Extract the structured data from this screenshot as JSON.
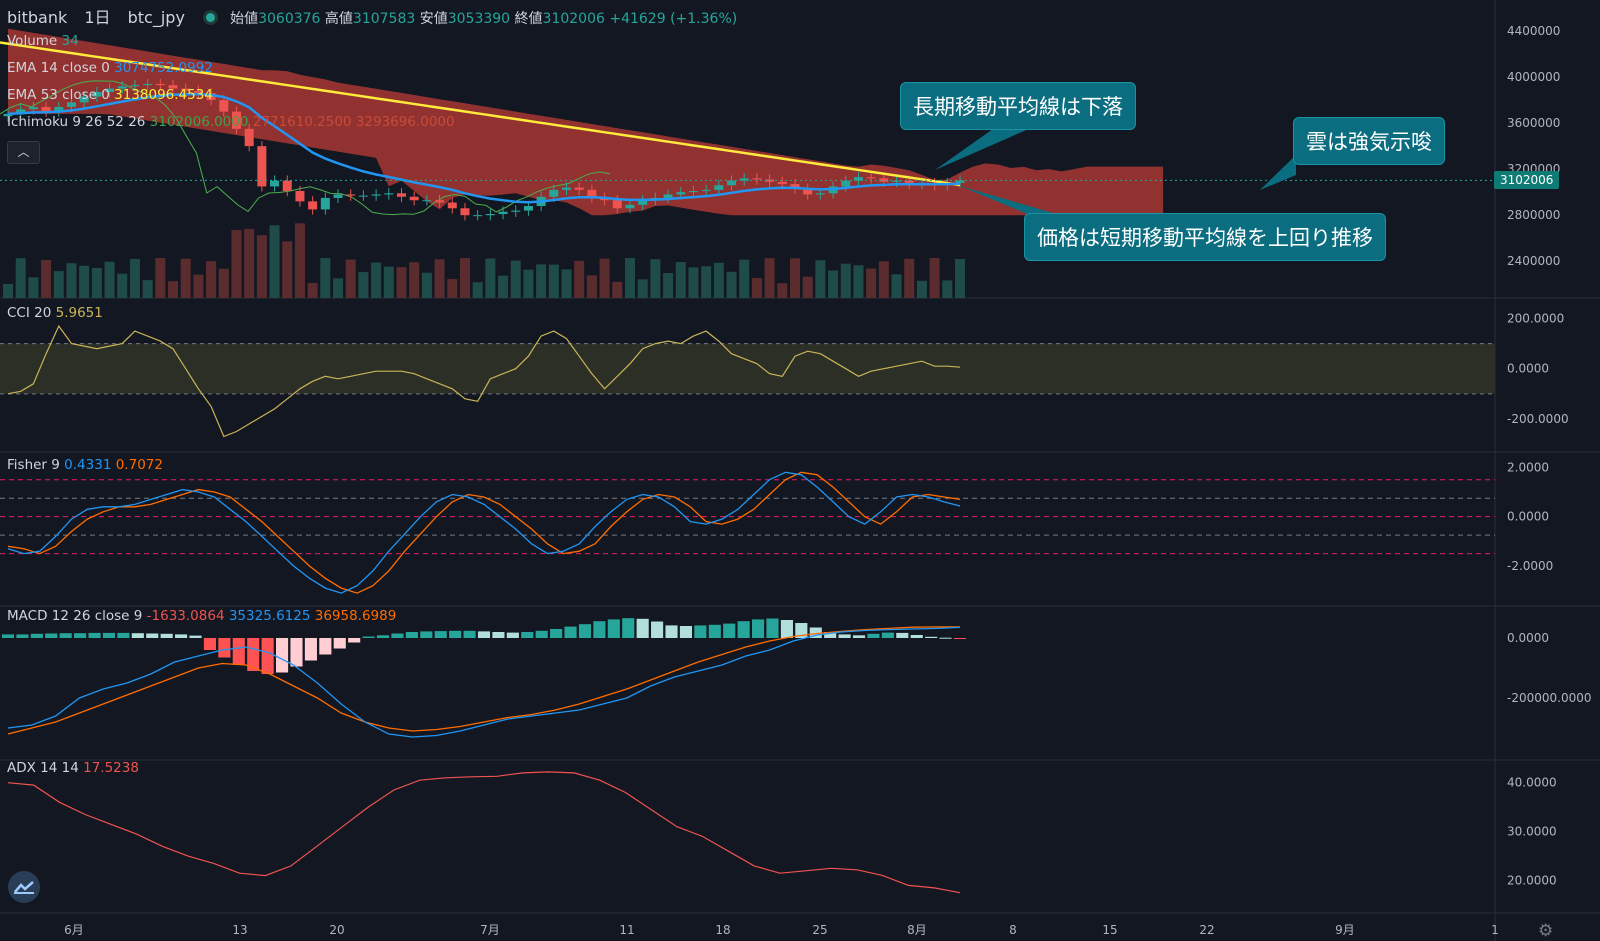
{
  "header": {
    "symbol": "bitbank",
    "interval": "1日",
    "pair": "btc_jpy",
    "open_label": "始値",
    "open": "3060376",
    "high_label": "高値",
    "high": "3107583",
    "low_label": "安値",
    "low": "3053390",
    "close_label": "終値",
    "close": "3102006",
    "change": "+41629 (+1.36%)"
  },
  "indicators": {
    "volume": {
      "label": "Volume",
      "value": "34"
    },
    "ema14": {
      "label": "EMA 14 close 0",
      "value": "3074752.0992"
    },
    "ema53": {
      "label": "EMA 53 close 0",
      "value": "3138096.4534"
    },
    "ichimoku": {
      "label": "Ichimoku 9 26 52 26",
      "v1": "3102006.0000",
      "v2": "2771610.2500",
      "v3": "3293696.0000"
    },
    "cci": {
      "label": "CCI 20",
      "value": "5.9651"
    },
    "fisher": {
      "label": "Fisher 9",
      "v1": "0.4331",
      "v2": "0.7072"
    },
    "macd": {
      "label": "MACD 12 26 close 9",
      "v1": "-1633.0864",
      "v2": "35325.6125",
      "v3": "36958.6989"
    },
    "adx": {
      "label": "ADX 14 14",
      "value": "17.5238"
    }
  },
  "annotations": {
    "a1": "長期移動平均線は下落",
    "a2": "雲は強気示唆",
    "a3": "価格は短期移動平均線を上回り推移"
  },
  "current_price_tag": "3102006",
  "colors": {
    "bg": "#131722",
    "up": "#26a69a",
    "down": "#ef5350",
    "ema14": "#2196f3",
    "ema53": "#ffeb3b",
    "cloud": "#b13a34",
    "cci": "#c9b458",
    "fisher1": "#2196f3",
    "fisher2": "#ff6d00",
    "adx": "#ef5350",
    "callout": "#0b6d80"
  },
  "chart_data": [
    {
      "type": "candlestick",
      "title": "bitbank 1日 btc_jpy",
      "x_ticks": [
        "6月",
        "13",
        "20",
        "7月",
        "11",
        "18",
        "25",
        "8月",
        "8",
        "15",
        "22",
        "9月",
        "1"
      ],
      "y_ticks": [
        "4400000",
        "4000000",
        "3600000",
        "3200000",
        "2800000",
        "2400000"
      ],
      "ylim": [
        2150000,
        4600000
      ],
      "closes": [
        3680000,
        3720000,
        3740000,
        3700000,
        3740000,
        3780000,
        3830000,
        3870000,
        3900000,
        3920000,
        3930000,
        3940000,
        3930000,
        3900000,
        3880000,
        3860000,
        3800000,
        3700000,
        3550000,
        3400000,
        3050000,
        3100000,
        3010000,
        2920000,
        2850000,
        2950000,
        2980000,
        2970000,
        2970000,
        2980000,
        2990000,
        2960000,
        2930000,
        2930000,
        2910000,
        2860000,
        2800000,
        2800000,
        2810000,
        2830000,
        2840000,
        2880000,
        2960000,
        3020000,
        3040000,
        3020000,
        2950000,
        2930000,
        2860000,
        2890000,
        2930000,
        2950000,
        2980000,
        3000000,
        3010000,
        3020000,
        3060000,
        3100000,
        3120000,
        3110000,
        3090000,
        3070000,
        3030000,
        2980000,
        2990000,
        3050000,
        3100000,
        3130000,
        3120000,
        3090000,
        3100000,
        3070000,
        3080000,
        3060000,
        3080000,
        3102006
      ],
      "volume_label": "Volume 34"
    },
    {
      "type": "line",
      "name": "CCI 20",
      "y_ticks": [
        "200.0000",
        "0.0000",
        "-200.0000"
      ],
      "ylim": [
        -300,
        250
      ],
      "band": [
        -100,
        100
      ],
      "values": [
        -100,
        -90,
        -60,
        60,
        170,
        100,
        90,
        80,
        90,
        100,
        150,
        130,
        110,
        80,
        0,
        -80,
        -150,
        -270,
        -250,
        -220,
        -190,
        -160,
        -120,
        -80,
        -50,
        -30,
        -40,
        -30,
        -20,
        -10,
        -10,
        -10,
        -20,
        -40,
        -60,
        -80,
        -120,
        -130,
        -40,
        -20,
        0,
        50,
        130,
        150,
        120,
        50,
        -20,
        -80,
        -30,
        20,
        80,
        100,
        110,
        100,
        130,
        150,
        110,
        60,
        40,
        20,
        -20,
        -30,
        50,
        70,
        60,
        30,
        0,
        -30,
        -10,
        0,
        10,
        20,
        30,
        10,
        10,
        5.9651
      ],
      "last": 5.9651
    },
    {
      "type": "line",
      "name": "Fisher 9",
      "y_ticks": [
        "2.0000",
        "0.0000",
        "-2.0000"
      ],
      "ylim": [
        -3.3,
        2.3
      ],
      "levels": [
        1.5,
        0.75,
        0,
        -0.75,
        -1.5
      ],
      "series": [
        {
          "name": "Fisher",
          "values": [
            -1.3,
            -1.5,
            -1.4,
            -0.8,
            -0.1,
            0.3,
            0.4,
            0.4,
            0.5,
            0.7,
            0.9,
            1.1,
            1.0,
            0.8,
            0.3,
            -0.2,
            -0.8,
            -1.4,
            -2.0,
            -2.5,
            -2.9,
            -3.1,
            -2.8,
            -2.2,
            -1.4,
            -0.7,
            0.0,
            0.6,
            0.9,
            0.8,
            0.5,
            0.0,
            -0.5,
            -1.1,
            -1.5,
            -1.4,
            -1.1,
            -0.4,
            0.2,
            0.7,
            0.9,
            0.8,
            0.4,
            -0.2,
            -0.3,
            -0.1,
            0.3,
            0.9,
            1.5,
            1.8,
            1.7,
            1.2,
            0.6,
            0.0,
            -0.3,
            0.2,
            0.8,
            0.9,
            0.8,
            0.6,
            0.4331
          ]
        },
        {
          "name": "Trigger",
          "values": [
            -1.2,
            -1.3,
            -1.5,
            -1.2,
            -0.6,
            -0.1,
            0.2,
            0.4,
            0.4,
            0.5,
            0.7,
            0.9,
            1.1,
            1.0,
            0.8,
            0.3,
            -0.2,
            -0.8,
            -1.4,
            -2.0,
            -2.5,
            -2.9,
            -3.1,
            -2.8,
            -2.2,
            -1.4,
            -0.7,
            0.0,
            0.6,
            0.9,
            0.8,
            0.5,
            0.0,
            -0.5,
            -1.1,
            -1.5,
            -1.4,
            -1.1,
            -0.4,
            0.2,
            0.7,
            0.9,
            0.8,
            0.4,
            -0.2,
            -0.3,
            -0.1,
            0.3,
            0.9,
            1.5,
            1.8,
            1.7,
            1.2,
            0.6,
            0.0,
            -0.3,
            0.2,
            0.8,
            0.9,
            0.8,
            0.7072
          ]
        }
      ]
    },
    {
      "type": "line",
      "name": "MACD 12 26 close 9",
      "y_ticks": [
        "0.0000",
        "-200000.0000"
      ],
      "ylim": [
        -380000,
        80000
      ],
      "histogram": [
        12000,
        12000,
        14000,
        15000,
        16000,
        16000,
        17000,
        17000,
        17000,
        16000,
        15000,
        14000,
        12000,
        8000,
        -40000,
        -65000,
        -90000,
        -110000,
        -120000,
        -115000,
        -95000,
        -75000,
        -55000,
        -35000,
        -15000,
        5000,
        9000,
        15000,
        20000,
        22000,
        23000,
        24000,
        24000,
        22000,
        20000,
        18000,
        20000,
        24000,
        30000,
        38000,
        46000,
        56000,
        62000,
        66000,
        64000,
        55000,
        42000,
        40000,
        42000,
        44000,
        48000,
        56000,
        62000,
        65000,
        60000,
        50000,
        35000,
        20000,
        12000,
        9000,
        14000,
        18000,
        17000,
        10000,
        4000,
        1000,
        -1633
      ],
      "series": [
        {
          "name": "MACD",
          "values": [
            -300000,
            -290000,
            -260000,
            -200000,
            -170000,
            -150000,
            -120000,
            -80000,
            -60000,
            -40000,
            -30000,
            -50000,
            -90000,
            -150000,
            -220000,
            -280000,
            -320000,
            -330000,
            -325000,
            -310000,
            -290000,
            -270000,
            -260000,
            -250000,
            -240000,
            -220000,
            -200000,
            -160000,
            -130000,
            -110000,
            -90000,
            -60000,
            -40000,
            -10000,
            10000,
            20000,
            25000,
            28000,
            30000,
            32000,
            35325
          ]
        },
        {
          "name": "Signal",
          "values": [
            -320000,
            -300000,
            -280000,
            -250000,
            -220000,
            -190000,
            -160000,
            -130000,
            -100000,
            -85000,
            -90000,
            -120000,
            -160000,
            -200000,
            -250000,
            -280000,
            -300000,
            -310000,
            -305000,
            -295000,
            -280000,
            -265000,
            -255000,
            -240000,
            -220000,
            -195000,
            -170000,
            -140000,
            -110000,
            -80000,
            -55000,
            -30000,
            -10000,
            5000,
            15000,
            22000,
            28000,
            32000,
            36000,
            37000,
            36958
          ]
        }
      ]
    },
    {
      "type": "line",
      "name": "ADX 14 14",
      "y_ticks": [
        "40.0000",
        "30.0000",
        "20.0000"
      ],
      "ylim": [
        15,
        43
      ],
      "values": [
        40,
        39.5,
        36,
        33.5,
        31.5,
        29.5,
        27,
        25,
        23.5,
        21.5,
        21,
        23,
        27,
        31,
        35,
        38.5,
        40.5,
        41,
        41.2,
        41.3,
        42,
        42.2,
        42,
        40.5,
        38,
        34.5,
        31,
        29,
        26,
        23,
        21.5,
        22,
        22.5,
        22.2,
        21,
        19,
        18.5,
        17.5238
      ],
      "last": 17.5238
    }
  ]
}
